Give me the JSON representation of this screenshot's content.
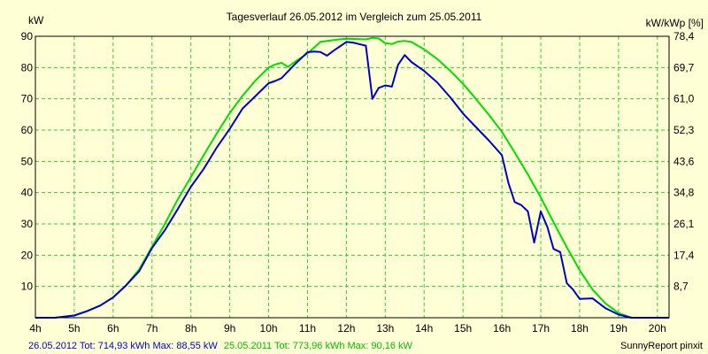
{
  "colors": {
    "background": "#FFFFD5",
    "plot_area": "#FFFFD5",
    "grid": "#33CC33",
    "axis": "#000000",
    "series_2012": "#0000CC",
    "series_2011": "#00DD00"
  },
  "chart_data": {
    "type": "line",
    "title": "Tagesverlauf 26.05.2012 im Vergleich zum 25.05.2011",
    "ylabel_left": "kW",
    "ylabel_right": "kW/kWp [%]",
    "xlim": [
      4,
      20.3
    ],
    "ylim": [
      0,
      90
    ],
    "grid": true,
    "x_ticks": [
      {
        "value": 4,
        "label": "4h"
      },
      {
        "value": 5,
        "label": "5h"
      },
      {
        "value": 6,
        "label": "6h"
      },
      {
        "value": 7,
        "label": "7h"
      },
      {
        "value": 8,
        "label": "8h"
      },
      {
        "value": 9,
        "label": "9h"
      },
      {
        "value": 10,
        "label": "10h"
      },
      {
        "value": 11,
        "label": "11h"
      },
      {
        "value": 12,
        "label": "12h"
      },
      {
        "value": 13,
        "label": "13h"
      },
      {
        "value": 14,
        "label": "14h"
      },
      {
        "value": 15,
        "label": "15h"
      },
      {
        "value": 16,
        "label": "16h"
      },
      {
        "value": 17,
        "label": "17h"
      },
      {
        "value": 18,
        "label": "18h"
      },
      {
        "value": 19,
        "label": "19h"
      },
      {
        "value": 20,
        "label": "20h"
      }
    ],
    "y_ticks_left": [
      {
        "value": 10,
        "label": "10"
      },
      {
        "value": 20,
        "label": "20"
      },
      {
        "value": 30,
        "label": "30"
      },
      {
        "value": 40,
        "label": "40"
      },
      {
        "value": 50,
        "label": "50"
      },
      {
        "value": 60,
        "label": "60"
      },
      {
        "value": 70,
        "label": "70"
      },
      {
        "value": 80,
        "label": "80"
      },
      {
        "value": 90,
        "label": "90"
      }
    ],
    "y_ticks_right": [
      {
        "value": 10,
        "label": "8,7"
      },
      {
        "value": 20,
        "label": "17,4"
      },
      {
        "value": 30,
        "label": "26,1"
      },
      {
        "value": 40,
        "label": "34,8"
      },
      {
        "value": 50,
        "label": "43,6"
      },
      {
        "value": 60,
        "label": "52,3"
      },
      {
        "value": 70,
        "label": "61,0"
      },
      {
        "value": 80,
        "label": "69,7"
      },
      {
        "value": 90,
        "label": "78,4"
      }
    ],
    "series": [
      {
        "name": "26.05.2012",
        "color": "#0000CC",
        "x": [
          4.0,
          4.5,
          5.0,
          5.33,
          5.67,
          6.0,
          6.33,
          6.67,
          7.0,
          7.33,
          7.67,
          8.0,
          8.33,
          8.67,
          9.0,
          9.33,
          9.67,
          10.0,
          10.17,
          10.33,
          10.67,
          11.0,
          11.17,
          11.33,
          11.5,
          11.67,
          12.0,
          12.17,
          12.33,
          12.5,
          12.67,
          12.83,
          13.0,
          13.17,
          13.33,
          13.5,
          13.67,
          14.0,
          14.33,
          14.67,
          15.0,
          15.33,
          15.67,
          16.0,
          16.17,
          16.33,
          16.5,
          16.67,
          16.83,
          17.0,
          17.17,
          17.33,
          17.5,
          17.67,
          17.83,
          18.0,
          18.33,
          18.67,
          19.0,
          19.33,
          19.5,
          19.67,
          20.0,
          20.3
        ],
        "values": [
          0.0,
          0.0,
          0.7,
          2.1,
          3.9,
          6.5,
          10.3,
          14.9,
          22.3,
          28.0,
          34.9,
          41.9,
          47.6,
          54.5,
          60.4,
          66.9,
          71.0,
          75.0,
          75.7,
          76.6,
          81.0,
          84.9,
          85.1,
          85.0,
          83.8,
          85.4,
          88.2,
          88.0,
          87.5,
          87.0,
          70.0,
          73.5,
          74.3,
          73.9,
          80.9,
          84.0,
          81.8,
          78.9,
          75.3,
          70.5,
          65.3,
          61.0,
          56.6,
          52.0,
          43.0,
          37.0,
          36.0,
          34.0,
          24.0,
          34.0,
          29.0,
          22.0,
          21.0,
          11.0,
          9.0,
          6.0,
          6.2,
          3.0,
          1.0,
          0.0,
          0.0,
          0.0,
          0.0,
          0.0
        ]
      },
      {
        "name": "25.05.2011",
        "color": "#00DD00",
        "x": [
          4.0,
          4.5,
          5.0,
          5.33,
          5.67,
          6.0,
          6.33,
          6.67,
          7.0,
          7.33,
          7.67,
          8.0,
          8.33,
          8.67,
          9.0,
          9.33,
          9.67,
          10.0,
          10.17,
          10.33,
          10.5,
          10.67,
          11.0,
          11.33,
          11.67,
          12.0,
          12.5,
          12.67,
          12.83,
          13.0,
          13.17,
          13.33,
          13.5,
          13.67,
          14.0,
          14.33,
          14.67,
          15.0,
          15.33,
          15.67,
          16.0,
          16.33,
          16.67,
          17.0,
          17.33,
          17.67,
          18.0,
          18.33,
          18.67,
          19.0,
          19.33,
          19.67,
          20.0,
          20.3
        ],
        "values": [
          0.0,
          0.0,
          0.7,
          2.1,
          3.9,
          6.5,
          10.3,
          15.5,
          22.7,
          30.0,
          38.0,
          45.0,
          52.0,
          59.0,
          65.5,
          71.0,
          76.0,
          80.0,
          81.0,
          81.5,
          80.2,
          81.8,
          84.5,
          88.2,
          88.8,
          89.2,
          89.0,
          89.5,
          89.3,
          87.8,
          87.5,
          88.3,
          88.5,
          88.2,
          85.8,
          82.8,
          79.0,
          74.8,
          70.0,
          64.8,
          59.5,
          52.8,
          45.8,
          38.5,
          30.5,
          22.5,
          15.2,
          9.0,
          4.5,
          1.5,
          0.0,
          0.0,
          0.0,
          0.0
        ]
      }
    ]
  },
  "footer": {
    "series1_label": "26.05.2012 Tot: 714,93 kWh Max: 88,55 kW",
    "series2_label": "25.05.2011 Tot: 773,96 kWh Max: 90,16 kW",
    "credit": "SunnyReport pinxit"
  }
}
